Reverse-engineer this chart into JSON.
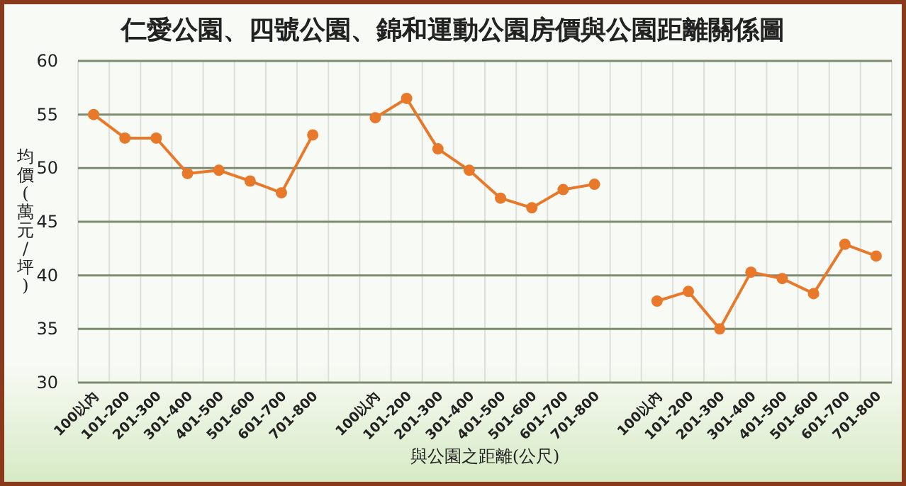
{
  "chart_data": {
    "type": "line",
    "title": "仁愛公園、四號公園、錦和運動公園房價與公園距離關係圖",
    "xlabel": "與公園之距離(公尺)",
    "ylabel": "均價(萬元/坪)",
    "categories": [
      "100以內",
      "101-200",
      "201-300",
      "301-400",
      "401-500",
      "501-600",
      "601-700",
      "701-800",
      null,
      "100以內",
      "101-200",
      "201-300",
      "301-400",
      "401-500",
      "501-600",
      "601-700",
      "701-800",
      null,
      "100以內",
      "101-200",
      "201-300",
      "301-400",
      "401-500",
      "501-600",
      "601-700",
      "701-800"
    ],
    "series": [
      {
        "color": "#e8782a",
        "values": [
          55.0,
          52.8,
          52.8,
          49.5,
          49.8,
          48.8,
          47.7,
          53.1,
          null,
          54.7,
          56.5,
          51.8,
          49.8,
          47.2,
          46.3,
          48.0,
          48.5,
          null,
          37.6,
          38.5,
          35.0,
          40.3,
          39.7,
          38.3,
          42.9,
          41.8
        ]
      }
    ],
    "ylim": [
      30,
      60
    ],
    "yticks": [
      30,
      35,
      40,
      45,
      50,
      55,
      60
    ],
    "grid": true,
    "marker": "circle",
    "line_style": "solid"
  }
}
